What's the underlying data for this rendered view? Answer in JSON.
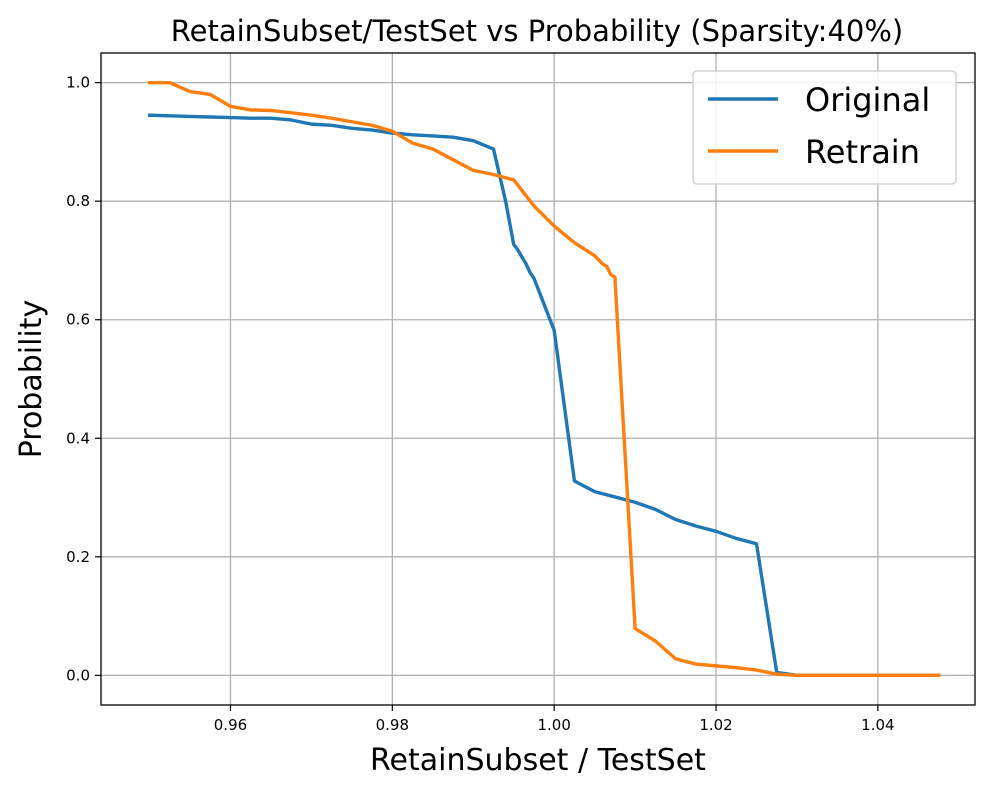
{
  "chart_data": {
    "type": "line",
    "title": "RetainSubset/TestSet vs Probability (Sparsity:40%)",
    "xlabel": "RetainSubset / TestSet",
    "ylabel": "Probability",
    "xlim": [
      0.944,
      1.052
    ],
    "ylim": [
      -0.05,
      1.05
    ],
    "xticks": [
      0.96,
      0.98,
      1.0,
      1.02,
      1.04
    ],
    "xtick_labels": [
      "0.96",
      "0.98",
      "1.00",
      "1.02",
      "1.04"
    ],
    "yticks": [
      0.0,
      0.2,
      0.4,
      0.6,
      0.8,
      1.0
    ],
    "ytick_labels": [
      "0.0",
      "0.2",
      "0.4",
      "0.6",
      "0.8",
      "1.0"
    ],
    "grid": true,
    "legend_position": "top-right",
    "series": [
      {
        "name": "Original",
        "color": "#1f77b4",
        "x": [
          0.95,
          0.9525,
          0.955,
          0.9575,
          0.96,
          0.9625,
          0.965,
          0.9675,
          0.97,
          0.9725,
          0.975,
          0.9775,
          0.98,
          0.9825,
          0.985,
          0.9875,
          0.99,
          0.9925,
          0.994,
          0.995,
          0.9955,
          0.996,
          0.9965,
          0.997,
          0.9975,
          1.0,
          1.0025,
          1.005,
          1.0075,
          1.01,
          1.0125,
          1.015,
          1.0175,
          1.02,
          1.0225,
          1.025,
          1.0275,
          1.03,
          1.0325,
          1.035,
          1.04,
          1.045,
          1.0475
        ],
        "y": [
          0.945,
          0.944,
          0.943,
          0.942,
          0.941,
          0.94,
          0.94,
          0.937,
          0.93,
          0.928,
          0.923,
          0.92,
          0.915,
          0.912,
          0.91,
          0.908,
          0.902,
          0.888,
          0.8,
          0.727,
          0.718,
          0.706,
          0.695,
          0.68,
          0.67,
          0.582,
          0.328,
          0.31,
          0.301,
          0.292,
          0.28,
          0.263,
          0.252,
          0.243,
          0.231,
          0.222,
          0.005,
          0.0,
          0.0,
          0.0,
          0.0,
          0.0,
          0.0
        ]
      },
      {
        "name": "Retrain",
        "color": "#ff7f0e",
        "x": [
          0.95,
          0.9525,
          0.955,
          0.9575,
          0.96,
          0.9625,
          0.965,
          0.9675,
          0.97,
          0.9725,
          0.975,
          0.9775,
          0.98,
          0.9825,
          0.985,
          0.9875,
          0.99,
          0.9925,
          0.995,
          0.9975,
          1.0,
          1.0025,
          1.005,
          1.006,
          1.0065,
          1.007,
          1.0075,
          1.01,
          1.0125,
          1.015,
          1.0175,
          1.02,
          1.0225,
          1.025,
          1.0275,
          1.03,
          1.0325,
          1.035,
          1.04,
          1.045,
          1.0475
        ],
        "y": [
          1.0,
          1.0,
          0.985,
          0.98,
          0.96,
          0.954,
          0.953,
          0.949,
          0.945,
          0.94,
          0.934,
          0.928,
          0.918,
          0.898,
          0.888,
          0.87,
          0.852,
          0.845,
          0.836,
          0.792,
          0.758,
          0.73,
          0.708,
          0.694,
          0.69,
          0.676,
          0.672,
          0.079,
          0.058,
          0.028,
          0.019,
          0.016,
          0.013,
          0.009,
          0.002,
          0.0,
          0.0,
          0.0,
          0.0,
          0.0,
          0.0
        ]
      }
    ]
  }
}
